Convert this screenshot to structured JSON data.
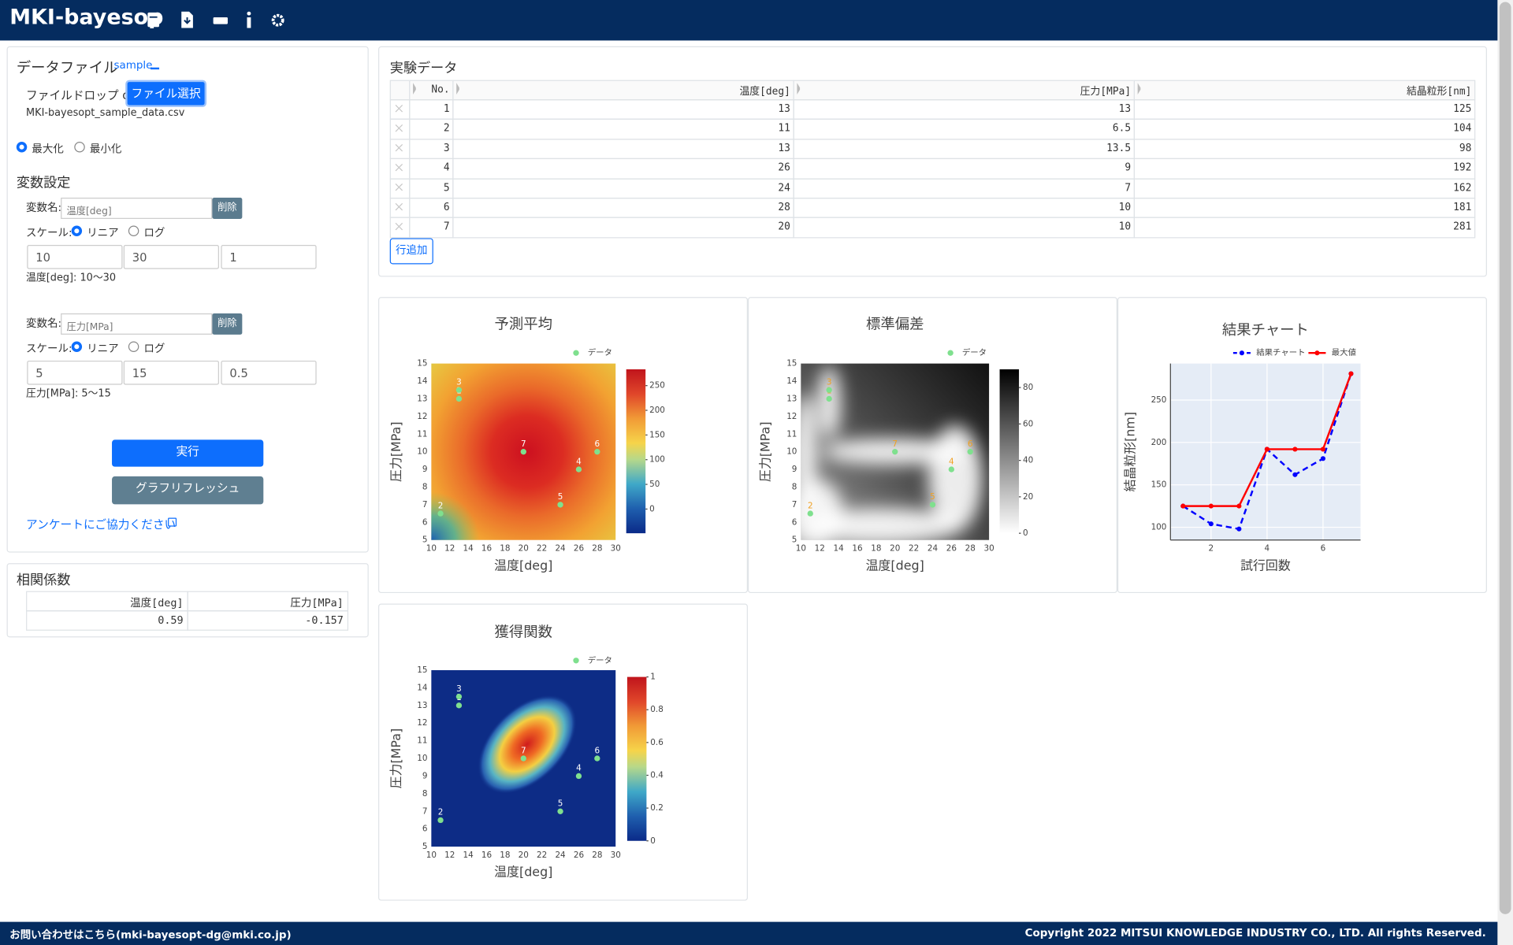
{
  "header": {
    "title": "MKI-bayesop"
  },
  "left": {
    "data_file": {
      "title": "データファイル",
      "sample": "sample",
      "drop": "ファイルドロップ or",
      "button": "ファイル選択",
      "filename": "MKI-bayesopt_sample_data.csv"
    },
    "mode": {
      "options": [
        "最大化",
        "最小化"
      ],
      "selected": 0
    },
    "variables": {
      "title": "変数設定",
      "label": "変数名:",
      "delete": "削除",
      "scale_label": "スケール:",
      "scale_options": [
        "リニア",
        "ログ"
      ],
      "items": [
        {
          "name": "温度[deg]",
          "scale": 0,
          "min": 10,
          "max": 30,
          "step": 1,
          "range": "温度[deg]: 10〜30"
        },
        {
          "name": "圧力[MPa]",
          "scale": 0,
          "min": 5,
          "max": 15,
          "step": 0.5,
          "range": "圧力[MPa]: 5〜15"
        }
      ]
    },
    "run": "実行",
    "refresh": "グラフリフレッシュ",
    "survey": "アンケートにご協力ください"
  },
  "correlation": {
    "title": "相関係数",
    "columns": [
      "温度[deg]",
      "圧力[MPa]"
    ],
    "values": [
      0.59,
      -0.157
    ]
  },
  "experiment": {
    "title": "実験データ",
    "columns": [
      "No.",
      "温度[deg]",
      "圧力[MPa]",
      "結晶粒形[nm]"
    ],
    "rows": [
      [
        1,
        13,
        13,
        125
      ],
      [
        2,
        11,
        6.5,
        104
      ],
      [
        3,
        13,
        13.5,
        98
      ],
      [
        4,
        26,
        9,
        192
      ],
      [
        5,
        24,
        7,
        162
      ],
      [
        6,
        28,
        10,
        181
      ],
      [
        7,
        20,
        10,
        281
      ]
    ],
    "add_row": "行追加"
  },
  "chart_data": [
    {
      "type": "heatmap",
      "title": "予測平均",
      "xlabel": "温度[deg]",
      "ylabel": "圧力[MPa]",
      "legend": "データ",
      "x": [
        13,
        11,
        13,
        26,
        24,
        28,
        20
      ],
      "y": [
        13,
        6.5,
        13.5,
        9,
        7,
        10,
        10
      ],
      "point_labels": [
        1,
        2,
        3,
        4,
        5,
        6,
        7
      ],
      "point_color": "#7fe08e",
      "label_color": "#ffffff",
      "xlim": [
        10,
        30
      ],
      "ylim": [
        5,
        15
      ],
      "xticks": [
        10,
        12,
        14,
        16,
        18,
        20,
        22,
        24,
        26,
        28,
        30
      ],
      "yticks": [
        5,
        6,
        7,
        8,
        9,
        10,
        11,
        12,
        13,
        14,
        15
      ],
      "colorscale": "Jet",
      "clim": [
        -49,
        283
      ],
      "cticks": [
        0,
        50,
        100,
        150,
        200,
        250
      ]
    },
    {
      "type": "heatmap",
      "title": "標準偏差",
      "xlabel": "温度[deg]",
      "ylabel": "圧力[MPa]",
      "legend": "データ",
      "x": [
        13,
        11,
        13,
        26,
        24,
        28,
        20
      ],
      "y": [
        13,
        6.5,
        13.5,
        9,
        7,
        10,
        10
      ],
      "point_labels": [
        1,
        2,
        3,
        4,
        5,
        6,
        7
      ],
      "point_color": "#7fe08e",
      "label_color": "#f0a020",
      "xlim": [
        10,
        30
      ],
      "ylim": [
        5,
        15
      ],
      "xticks": [
        10,
        12,
        14,
        16,
        18,
        20,
        22,
        24,
        26,
        28,
        30
      ],
      "yticks": [
        5,
        6,
        7,
        8,
        9,
        10,
        11,
        12,
        13,
        14,
        15
      ],
      "colorscale": "Greys",
      "clim": [
        0,
        90
      ],
      "cticks": [
        0,
        20,
        40,
        60,
        80
      ]
    },
    {
      "type": "line",
      "title": "結果チャート",
      "xlabel": "試行回数",
      "ylabel": "結晶粒形[nm]",
      "x": [
        1,
        2,
        3,
        4,
        5,
        6,
        7
      ],
      "series": [
        {
          "name": "結果チャート",
          "color": "#0000ff",
          "dash": true,
          "values": [
            125,
            104,
            98,
            192,
            162,
            181,
            281
          ]
        },
        {
          "name": "最大値",
          "color": "#ff0000",
          "dash": false,
          "values": [
            125,
            125,
            125,
            192,
            192,
            192,
            281
          ]
        }
      ],
      "xlim": [
        0.55,
        7.34
      ],
      "ylim": [
        85,
        293
      ],
      "xticks": [
        2,
        4,
        6
      ],
      "yticks": [
        100,
        150,
        200,
        250
      ],
      "grid": true
    },
    {
      "type": "heatmap",
      "title": "獲得関数",
      "xlabel": "温度[deg]",
      "ylabel": "圧力[MPa]",
      "legend": "データ",
      "x": [
        13,
        11,
        13,
        26,
        24,
        28,
        20
      ],
      "y": [
        13,
        6.5,
        13.5,
        9,
        7,
        10,
        10
      ],
      "point_labels": [
        1,
        2,
        3,
        4,
        5,
        6,
        7
      ],
      "point_color": "#7fe08e",
      "label_color": "#ffffff",
      "xlim": [
        10,
        30
      ],
      "ylim": [
        5,
        15
      ],
      "xticks": [
        10,
        12,
        14,
        16,
        18,
        20,
        22,
        24,
        26,
        28,
        30
      ],
      "yticks": [
        5,
        6,
        7,
        8,
        9,
        10,
        11,
        12,
        13,
        14,
        15
      ],
      "colorscale": "Jet",
      "clim": [
        0,
        1
      ],
      "cticks": [
        0,
        0.2,
        0.4,
        0.6,
        0.8,
        1
      ]
    }
  ],
  "footer": {
    "contact": "お問い合わせはこちら(mki-bayesopt-dg@mki.co.jp)",
    "copyright": "Copyright 2022 MITSUI KNOWLEDGE INDUSTRY CO., LTD. All rights Reserved."
  }
}
